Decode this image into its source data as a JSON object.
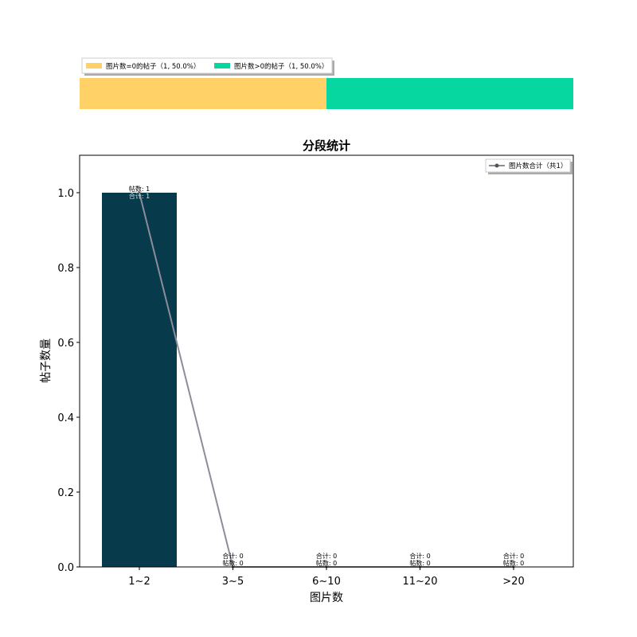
{
  "colors": {
    "no_image_posts": "#FFD166",
    "image_posts": "#06D6A0",
    "bar": "#073B4C",
    "line": "#8D8D99",
    "marker": "#555555"
  },
  "ratio_bar": {
    "segments": [
      {
        "label": "图片数=0的帖子（1, 50.0%）",
        "count": 1,
        "percent": 50.0
      },
      {
        "label": "图片数>0的帖子（1, 50.0%）",
        "count": 1,
        "percent": 50.0
      }
    ]
  },
  "chart_data": {
    "type": "bar",
    "title": "分段统计",
    "xlabel": "图片数",
    "ylabel": "帖子数量",
    "categories": [
      "1~2",
      "3~5",
      "6~10",
      "11~20",
      ">20"
    ],
    "ylim": [
      0,
      1.1
    ],
    "yticks": [
      "0.0",
      "0.2",
      "0.4",
      "0.6",
      "0.8",
      "1.0"
    ],
    "series": [
      {
        "kind": "bar",
        "values": [
          1,
          0,
          0,
          0,
          0
        ]
      },
      {
        "kind": "line",
        "name": "图片数合计（共1）",
        "values": [
          1,
          0,
          0,
          0,
          0
        ]
      }
    ],
    "bar_labels": [
      "帖数: 1",
      "帖数: 0",
      "帖数: 0",
      "帖数: 0",
      "帖数: 0"
    ],
    "line_labels": [
      "合计: 1",
      "合计: 0",
      "合计: 0",
      "合计: 0",
      "合计: 0"
    ],
    "legend_position": "top-right",
    "grid": false
  }
}
